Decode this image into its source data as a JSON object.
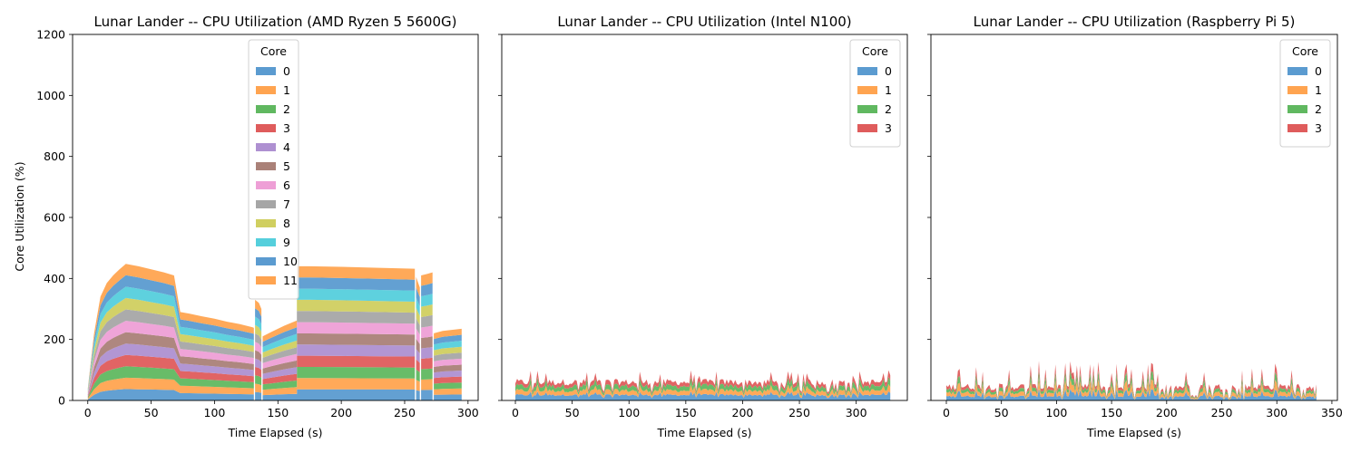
{
  "figure": {
    "ylabel": "Core Utilization (%)",
    "ylim": [
      0,
      1200
    ],
    "yticks": [
      0,
      200,
      400,
      600,
      800,
      1000,
      1200
    ]
  },
  "core_colors": [
    "#5b9bd0",
    "#ffa450",
    "#60b860",
    "#df5c5c",
    "#ae90d1",
    "#aa8178",
    "#ee9fd6",
    "#a6a6a6",
    "#d0cf60",
    "#55cfdc",
    "#5b9bd0",
    "#ffa450"
  ],
  "chart_data": [
    {
      "type": "area",
      "stacked": true,
      "title": "Lunar Lander -- CPU Utilization (AMD Ryzen 5 5600G)",
      "xlabel": "Time Elapsed (s)",
      "ylabel": "Core Utilization (%)",
      "xlim": [
        -12,
        308
      ],
      "ylim": [
        0,
        1200
      ],
      "xticks": [
        0,
        50,
        100,
        150,
        200,
        250,
        300
      ],
      "legend": {
        "title": "Core",
        "placement": "upper center",
        "entries": [
          "0",
          "1",
          "2",
          "3",
          "4",
          "5",
          "6",
          "7",
          "8",
          "9",
          "10",
          "11"
        ]
      },
      "pattern": "smooth",
      "segments": [
        {
          "x": [
            0,
            5,
            10,
            15,
            20,
            25,
            30,
            40,
            50,
            60,
            68,
            73,
            80,
            90,
            100,
            110,
            120,
            130,
            131
          ],
          "total": [
            40,
            220,
            340,
            385,
            410,
            430,
            448,
            440,
            430,
            420,
            410,
            290,
            285,
            276,
            268,
            258,
            250,
            240,
            238
          ]
        },
        {
          "x": [
            132,
            135,
            137
          ],
          "total": [
            330,
            320,
            300
          ]
        },
        {
          "x": [
            138,
            145,
            155,
            165
          ],
          "total": [
            210,
            225,
            245,
            262
          ]
        },
        {
          "x": [
            165,
            175,
            200,
            230,
            258
          ],
          "total": [
            440,
            440,
            438,
            435,
            432
          ]
        },
        {
          "x": [
            259,
            262
          ],
          "total": [
            405,
            370
          ]
        },
        {
          "x": [
            263,
            268,
            272
          ],
          "total": [
            410,
            415,
            420
          ]
        },
        {
          "x": [
            273,
            280,
            295
          ],
          "total": [
            220,
            228,
            235
          ]
        }
      ],
      "series": [
        {
          "name": "0",
          "share": 0.0833
        },
        {
          "name": "1",
          "share": 0.0833
        },
        {
          "name": "2",
          "share": 0.0833
        },
        {
          "name": "3",
          "share": 0.0833
        },
        {
          "name": "4",
          "share": 0.0833
        },
        {
          "name": "5",
          "share": 0.0833
        },
        {
          "name": "6",
          "share": 0.0833
        },
        {
          "name": "7",
          "share": 0.0833
        },
        {
          "name": "8",
          "share": 0.0833
        },
        {
          "name": "9",
          "share": 0.0833
        },
        {
          "name": "10",
          "share": 0.0833
        },
        {
          "name": "11",
          "share": 0.0837
        }
      ]
    },
    {
      "type": "area",
      "stacked": true,
      "title": "Lunar Lander -- CPU Utilization (Intel N100)",
      "xlabel": "Time Elapsed (s)",
      "xlim": [
        -12,
        345
      ],
      "ylim": [
        0,
        1200
      ],
      "xticks": [
        0,
        50,
        100,
        150,
        200,
        250,
        300
      ],
      "legend": {
        "title": "Core",
        "placement": "upper right",
        "entries": [
          "0",
          "1",
          "2",
          "3"
        ]
      },
      "pattern": "spiky",
      "segments": [
        {
          "x": [
            0,
            330
          ],
          "total": [
            60,
            60
          ],
          "spike_max": 100,
          "spike_min": 25
        }
      ],
      "series": [
        {
          "name": "0",
          "share": 0.3
        },
        {
          "name": "1",
          "share": 0.24
        },
        {
          "name": "2",
          "share": 0.24
        },
        {
          "name": "3",
          "share": 0.22
        }
      ]
    },
    {
      "type": "area",
      "stacked": true,
      "title": "Lunar Lander -- CPU Utilization (Raspberry Pi 5)",
      "xlabel": "Time Elapsed (s)",
      "xlim": [
        -14,
        355
      ],
      "ylim": [
        0,
        1200
      ],
      "xticks": [
        0,
        50,
        100,
        150,
        200,
        250,
        300,
        350
      ],
      "legend": {
        "title": "Core",
        "placement": "upper right",
        "entries": [
          "0",
          "1",
          "2",
          "3"
        ]
      },
      "pattern": "spiky",
      "segments": [
        {
          "x": [
            0,
            337
          ],
          "total": [
            45,
            45
          ],
          "spike_max": 130,
          "spike_min": 5
        }
      ],
      "series": [
        {
          "name": "0",
          "share": 0.3
        },
        {
          "name": "1",
          "share": 0.26
        },
        {
          "name": "2",
          "share": 0.22
        },
        {
          "name": "3",
          "share": 0.22
        }
      ]
    }
  ]
}
